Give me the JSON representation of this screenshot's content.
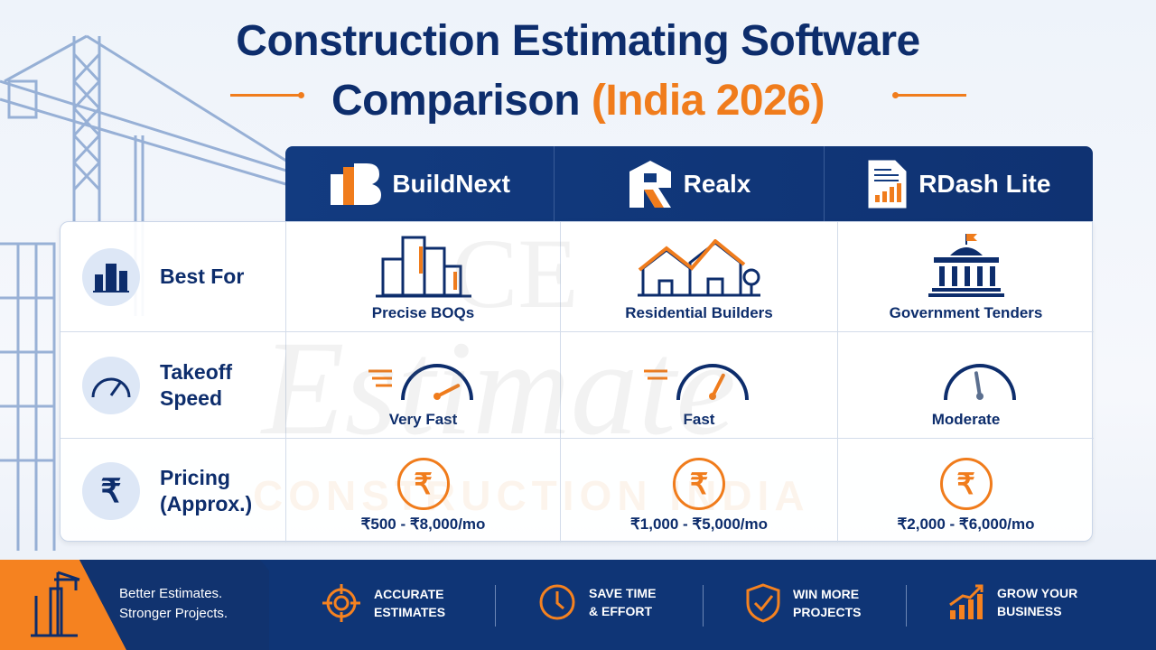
{
  "title": {
    "line1": "Construction Estimating Software",
    "line2_main": "Comparison",
    "line2_highlight": "(India 2026)"
  },
  "watermark": "CE Estimate CONSTRUCTION INDIA",
  "products": [
    {
      "name": "BuildNext"
    },
    {
      "name": "Realx"
    },
    {
      "name": "RDash Lite"
    }
  ],
  "rows": [
    {
      "label": "Best For",
      "values": [
        "Precise BOQs",
        "Residential Builders",
        "Government Tenders"
      ]
    },
    {
      "label_line1": "Takeoff",
      "label_line2": "Speed",
      "values": [
        "Very Fast",
        "Fast",
        "Moderate"
      ],
      "speed_levels": [
        0.85,
        0.65,
        0.45
      ]
    },
    {
      "label_line1": "Pricing",
      "label_line2": "(Approx.)",
      "values": [
        "₹500 - ₹8,000/mo",
        "₹1,000 - ₹5,000/mo",
        "₹2,000 - ₹6,000/mo"
      ],
      "currency_symbol": "₹"
    }
  ],
  "footer": {
    "tagline1": "Better Estimates.",
    "tagline2": "Stronger Projects.",
    "features": [
      {
        "icon": "target-icon",
        "l1": "ACCURATE",
        "l2": "ESTIMATES"
      },
      {
        "icon": "clock-icon",
        "l1": "SAVE TIME",
        "l2": "& EFFORT"
      },
      {
        "icon": "shield-check-icon",
        "l1": "WIN MORE",
        "l2": "PROJECTS"
      },
      {
        "icon": "growth-chart-icon",
        "l1": "GROW YOUR",
        "l2": "BUSINESS"
      }
    ]
  },
  "colors": {
    "navy": "#0d2d6c",
    "orange": "#f07c1c",
    "header": "#123b80"
  }
}
